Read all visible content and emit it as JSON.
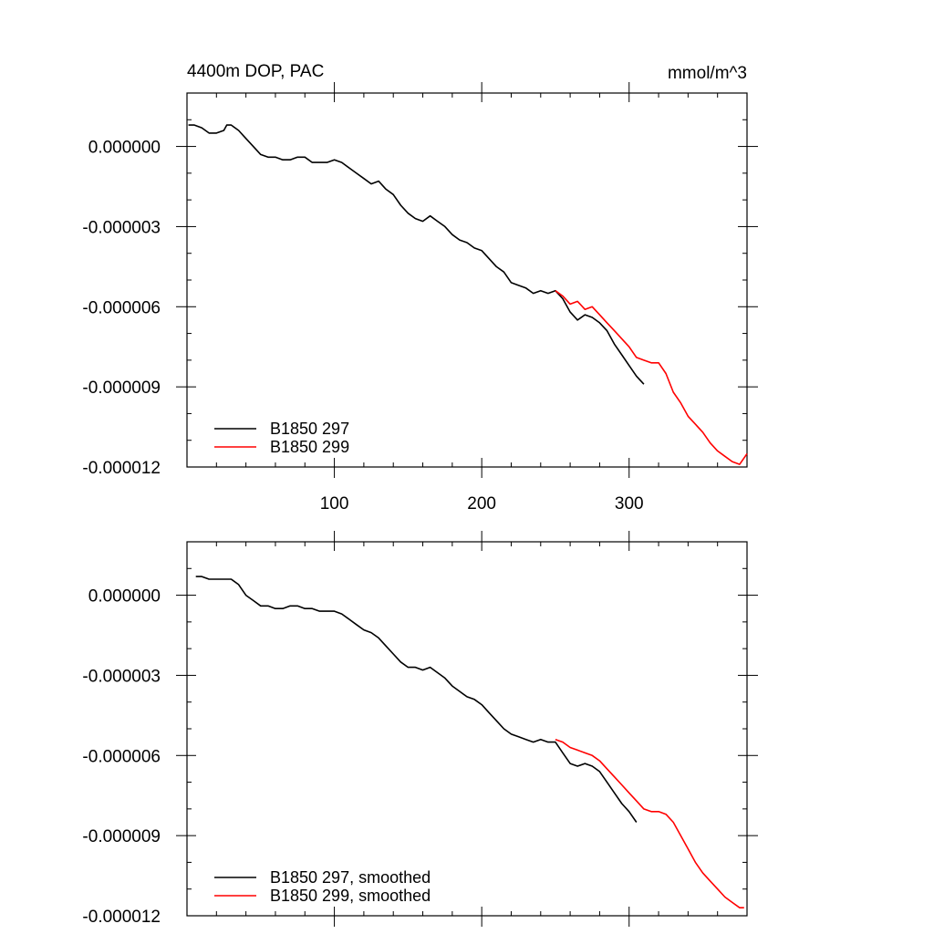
{
  "chart_data": [
    {
      "type": "line",
      "title": "4400m DOP, PAC",
      "units": "mmol/m^3",
      "xlim": [
        0,
        380
      ],
      "ylim": [
        -1.2e-05,
        2e-06
      ],
      "xticks": [
        "100",
        "200",
        "300"
      ],
      "yticks": [
        "0.000000",
        "-0.000003",
        "-0.000006",
        "-0.000009",
        "-0.000012"
      ],
      "legend_position": "bottom-left",
      "series": [
        {
          "name": "B1850 297",
          "color": "#000000",
          "x": [
            1,
            5,
            10,
            15,
            20,
            25,
            27,
            30,
            35,
            40,
            45,
            50,
            55,
            60,
            65,
            70,
            75,
            80,
            85,
            90,
            95,
            100,
            105,
            110,
            115,
            120,
            125,
            130,
            135,
            140,
            145,
            150,
            155,
            160,
            165,
            170,
            175,
            180,
            185,
            190,
            195,
            200,
            205,
            210,
            215,
            220,
            225,
            230,
            235,
            240,
            245,
            250,
            255,
            260,
            265,
            270,
            275,
            280,
            285,
            290,
            295,
            300,
            305,
            310
          ],
          "y": [
            8e-07,
            8e-07,
            7e-07,
            5e-07,
            5e-07,
            6e-07,
            8e-07,
            8e-07,
            6e-07,
            3e-07,
            0.0,
            -3e-07,
            -4e-07,
            -4e-07,
            -5e-07,
            -5e-07,
            -4e-07,
            -4e-07,
            -6e-07,
            -6e-07,
            -6e-07,
            -5e-07,
            -6e-07,
            -8e-07,
            -1e-06,
            -1.2e-06,
            -1.4e-06,
            -1.3e-06,
            -1.6e-06,
            -1.8e-06,
            -2.2e-06,
            -2.5e-06,
            -2.7e-06,
            -2.8e-06,
            -2.6e-06,
            -2.8e-06,
            -3e-06,
            -3.3e-06,
            -3.5e-06,
            -3.6e-06,
            -3.8e-06,
            -3.9e-06,
            -4.2e-06,
            -4.5e-06,
            -4.7e-06,
            -5.1e-06,
            -5.2e-06,
            -5.3e-06,
            -5.5e-06,
            -5.4e-06,
            -5.5e-06,
            -5.4e-06,
            -5.7e-06,
            -6.2e-06,
            -6.5e-06,
            -6.3e-06,
            -6.4e-06,
            -6.6e-06,
            -6.9e-06,
            -7.4e-06,
            -7.8e-06,
            -8.2e-06,
            -8.6e-06,
            -8.9e-06
          ]
        },
        {
          "name": "B1850 299",
          "color": "#ff0000",
          "x": [
            250,
            255,
            260,
            265,
            270,
            275,
            280,
            285,
            290,
            295,
            300,
            305,
            310,
            315,
            320,
            325,
            330,
            335,
            340,
            345,
            350,
            355,
            360,
            365,
            370,
            375,
            380
          ],
          "y": [
            -5.4e-06,
            -5.6e-06,
            -5.9e-06,
            -5.8e-06,
            -6.1e-06,
            -6e-06,
            -6.3e-06,
            -6.6e-06,
            -6.9e-06,
            -7.2e-06,
            -7.5e-06,
            -7.9e-06,
            -8e-06,
            -8.1e-06,
            -8.1e-06,
            -8.5e-06,
            -9.2e-06,
            -9.6e-06,
            -1.01e-05,
            -1.04e-05,
            -1.07e-05,
            -1.11e-05,
            -1.14e-05,
            -1.16e-05,
            -1.18e-05,
            -1.19e-05,
            -1.15e-05
          ]
        }
      ]
    },
    {
      "type": "line",
      "xlim": [
        0,
        380
      ],
      "ylim": [
        -1.2e-05,
        2e-06
      ],
      "yticks": [
        "0.000000",
        "-0.000003",
        "-0.000006",
        "-0.000009",
        "-0.000012"
      ],
      "legend_position": "bottom-left",
      "series": [
        {
          "name": "B1850 297, smoothed",
          "color": "#000000",
          "x": [
            6,
            10,
            15,
            20,
            25,
            30,
            35,
            40,
            45,
            50,
            55,
            60,
            65,
            70,
            75,
            80,
            85,
            90,
            95,
            100,
            105,
            110,
            115,
            120,
            125,
            130,
            135,
            140,
            145,
            150,
            155,
            160,
            165,
            170,
            175,
            180,
            185,
            190,
            195,
            200,
            205,
            210,
            215,
            220,
            225,
            230,
            235,
            240,
            245,
            250,
            255,
            260,
            265,
            270,
            275,
            280,
            285,
            290,
            295,
            300,
            305
          ],
          "y": [
            7e-07,
            7e-07,
            6e-07,
            6e-07,
            6e-07,
            6e-07,
            4e-07,
            0.0,
            -2e-07,
            -4e-07,
            -4e-07,
            -5e-07,
            -5e-07,
            -4e-07,
            -4e-07,
            -5e-07,
            -5e-07,
            -6e-07,
            -6e-07,
            -6e-07,
            -7e-07,
            -9e-07,
            -1.1e-06,
            -1.3e-06,
            -1.4e-06,
            -1.6e-06,
            -1.9e-06,
            -2.2e-06,
            -2.5e-06,
            -2.7e-06,
            -2.7e-06,
            -2.8e-06,
            -2.7e-06,
            -2.9e-06,
            -3.1e-06,
            -3.4e-06,
            -3.6e-06,
            -3.8e-06,
            -3.9e-06,
            -4.1e-06,
            -4.4e-06,
            -4.7e-06,
            -5e-06,
            -5.2e-06,
            -5.3e-06,
            -5.4e-06,
            -5.5e-06,
            -5.4e-06,
            -5.5e-06,
            -5.5e-06,
            -5.9e-06,
            -6.3e-06,
            -6.4e-06,
            -6.3e-06,
            -6.4e-06,
            -6.6e-06,
            -7e-06,
            -7.4e-06,
            -7.8e-06,
            -8.1e-06,
            -8.5e-06
          ]
        },
        {
          "name": "B1850 299, smoothed",
          "color": "#ff0000",
          "x": [
            250,
            255,
            260,
            265,
            270,
            275,
            280,
            285,
            290,
            295,
            300,
            305,
            310,
            315,
            320,
            325,
            330,
            335,
            340,
            345,
            350,
            355,
            360,
            365,
            370,
            375,
            378
          ],
          "y": [
            -5.4e-06,
            -5.5e-06,
            -5.7e-06,
            -5.8e-06,
            -5.9e-06,
            -6e-06,
            -6.2e-06,
            -6.5e-06,
            -6.8e-06,
            -7.1e-06,
            -7.4e-06,
            -7.7e-06,
            -8e-06,
            -8.1e-06,
            -8.1e-06,
            -8.2e-06,
            -8.5e-06,
            -9e-06,
            -9.5e-06,
            -1e-05,
            -1.04e-05,
            -1.07e-05,
            -1.1e-05,
            -1.13e-05,
            -1.15e-05,
            -1.17e-05,
            -1.17e-05
          ]
        }
      ]
    }
  ]
}
